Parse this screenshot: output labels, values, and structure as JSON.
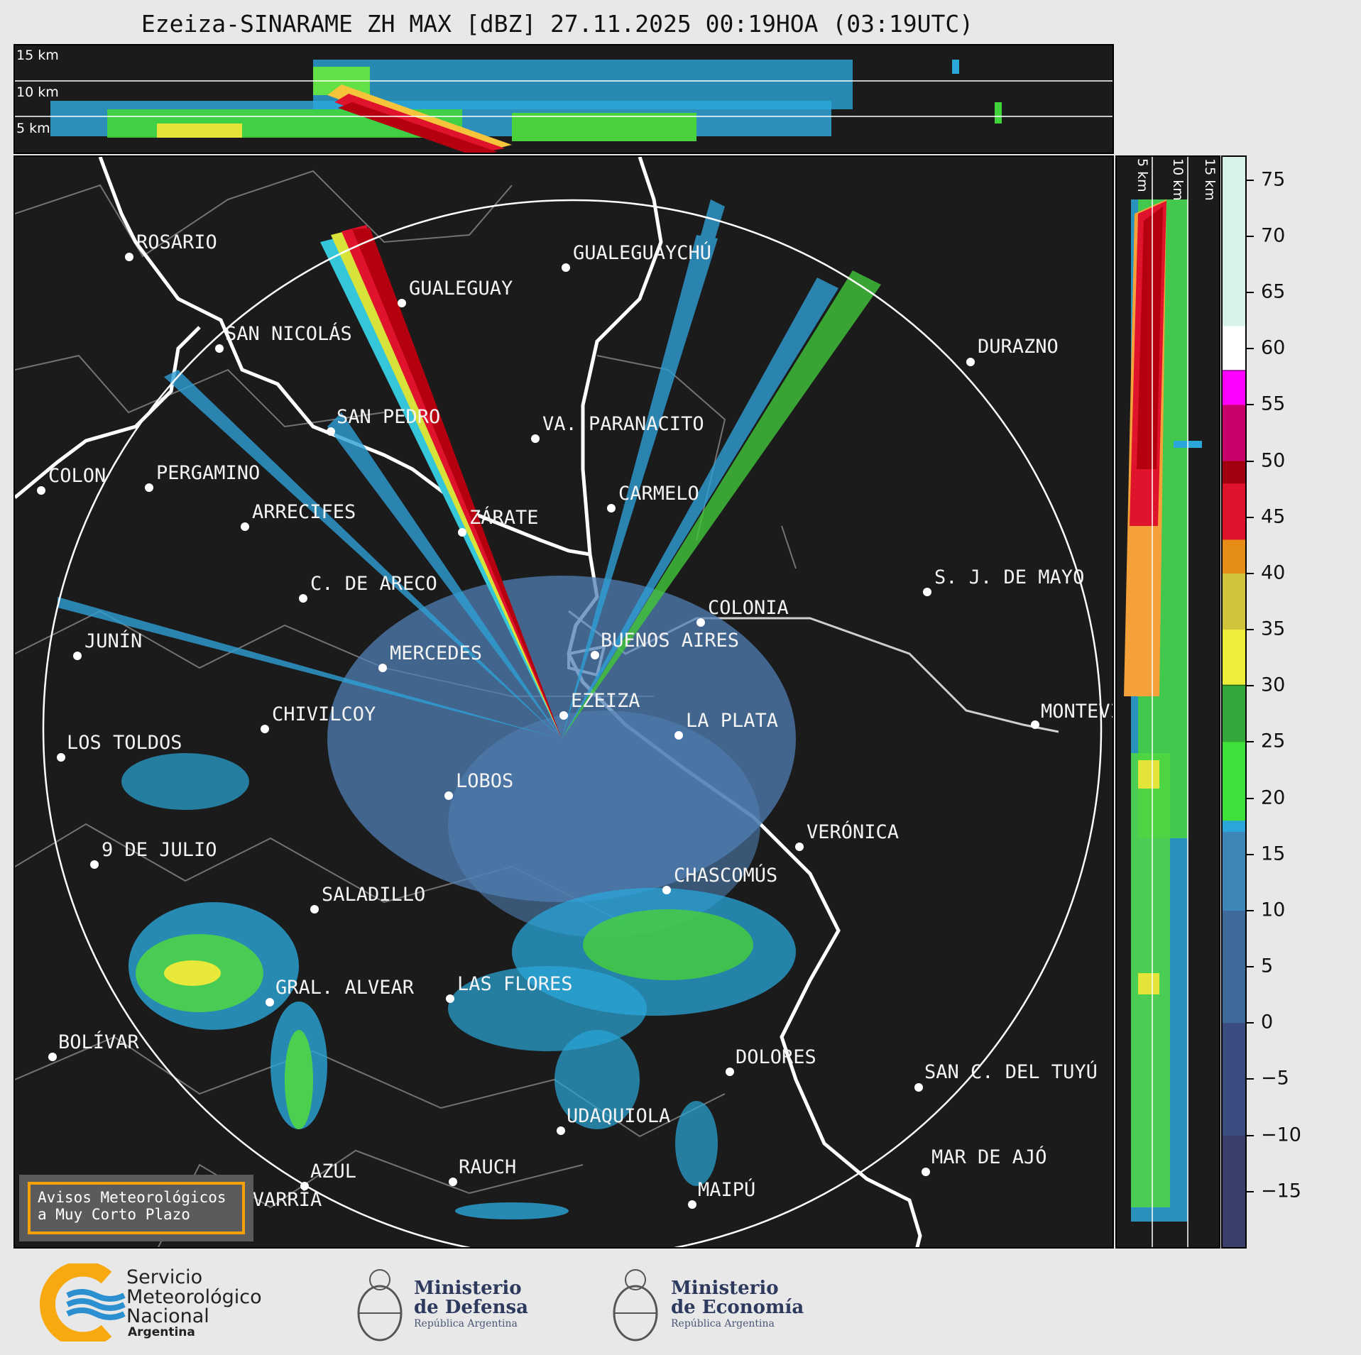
{
  "title": "Ezeiza-SINARAME ZH MAX [dBZ] 27.11.2025 00:19HOA (03:19UTC)",
  "top_panel": {
    "alt_labels": [
      "15 km",
      "10 km",
      "5 km"
    ]
  },
  "side_panel": {
    "alt_labels": [
      "5 km",
      "10 km",
      "15 km"
    ]
  },
  "colorbar": {
    "unit": "dBZ",
    "ticks": [
      "75",
      "70",
      "65",
      "60",
      "55",
      "50",
      "45",
      "40",
      "35",
      "30",
      "25",
      "20",
      "15",
      "10",
      "5",
      "0",
      "−5",
      "−10",
      "−15"
    ],
    "range": [
      -20,
      77
    ]
  },
  "cities": [
    {
      "name": "ROSARIO"
    },
    {
      "name": "GUALEGUAYCHÚ"
    },
    {
      "name": "GUALEGUAY"
    },
    {
      "name": "SAN NICOLÁS"
    },
    {
      "name": "DURAZNO"
    },
    {
      "name": "SAN PEDRO"
    },
    {
      "name": "VA. PARANACITO"
    },
    {
      "name": "COLON"
    },
    {
      "name": "PERGAMINO"
    },
    {
      "name": "CARMELO"
    },
    {
      "name": "ARRECIFES"
    },
    {
      "name": "ZÁRATE"
    },
    {
      "name": "S. J. DE MAYO"
    },
    {
      "name": "C. DE ARECO"
    },
    {
      "name": "COLONIA"
    },
    {
      "name": "JUNÍN"
    },
    {
      "name": "BUENOS AIRES"
    },
    {
      "name": "MERCEDES"
    },
    {
      "name": "EZEIZA"
    },
    {
      "name": "MONTEVIDEO"
    },
    {
      "name": "CHIVILCOY"
    },
    {
      "name": "LA PLATA"
    },
    {
      "name": "LOS TOLDOS"
    },
    {
      "name": "LOBOS"
    },
    {
      "name": "VERÓNICA"
    },
    {
      "name": "9 DE JULIO"
    },
    {
      "name": "CHASCOMÚS"
    },
    {
      "name": "SALADILLO"
    },
    {
      "name": "GRAL. ALVEAR"
    },
    {
      "name": "LAS FLORES"
    },
    {
      "name": "BOLÍVAR"
    },
    {
      "name": "DOLORES"
    },
    {
      "name": "SAN C. DEL TUYÚ"
    },
    {
      "name": "UDAQUIOLA"
    },
    {
      "name": "MAR DE AJÓ"
    },
    {
      "name": "AZUL"
    },
    {
      "name": "RAUCH"
    },
    {
      "name": "OLAVARRÍA"
    },
    {
      "name": "MAIPÚ"
    }
  ],
  "avisos": {
    "line1": "Avisos Meteorológicos",
    "line2": "a Muy Corto Plazo"
  },
  "logos": {
    "smn": {
      "line1": "Servicio",
      "line2": "Meteorológico",
      "line3": "Nacional",
      "line4": "Argentina"
    },
    "defensa": {
      "line1": "Ministerio",
      "line2": "de Defensa",
      "line3": "República Argentina"
    },
    "economia": {
      "line1": "Ministerio",
      "line2": "de Economía",
      "line3": "República Argentina"
    }
  },
  "colors": {
    "background": "#1b1b1b",
    "page": "#e8e8e8",
    "range_ring": "#ffffff",
    "avisos_border": "#f5a10c",
    "smn_orange": "#f7a90f",
    "smn_blue": "#2b8fd0"
  }
}
